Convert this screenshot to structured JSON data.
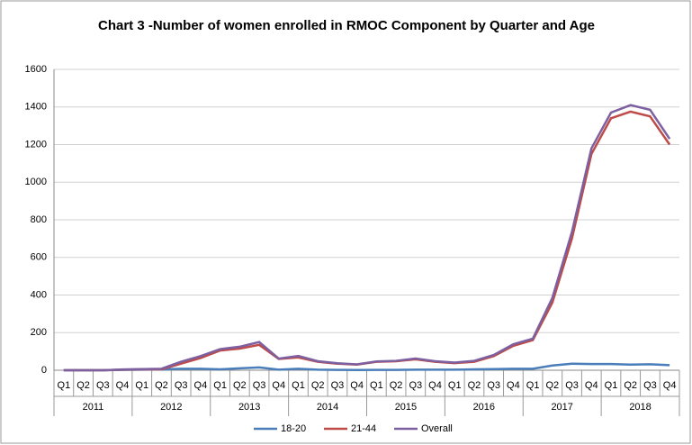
{
  "chart_data": {
    "type": "line",
    "title": "Chart 3 -Number of women enrolled in RMOC Component by Quarter and Age",
    "categories": [
      "Q1",
      "Q2",
      "Q3",
      "Q4",
      "Q1",
      "Q2",
      "Q3",
      "Q4",
      "Q1",
      "Q2",
      "Q3",
      "Q4",
      "Q1",
      "Q2",
      "Q3",
      "Q4",
      "Q1",
      "Q2",
      "Q3",
      "Q4",
      "Q1",
      "Q2",
      "Q3",
      "Q4",
      "Q1",
      "Q2",
      "Q3",
      "Q4",
      "Q1",
      "Q2",
      "Q3",
      "Q4"
    ],
    "category_groups": [
      "2011",
      "2012",
      "2013",
      "2014",
      "2015",
      "2016",
      "2017",
      "2018"
    ],
    "series": [
      {
        "name": "18-20",
        "color": "#4a7ebb",
        "values": [
          0,
          0,
          0,
          2,
          3,
          4,
          8,
          8,
          5,
          10,
          15,
          3,
          8,
          3,
          2,
          1,
          2,
          2,
          3,
          3,
          3,
          5,
          6,
          8,
          8,
          25,
          35,
          33,
          33,
          30,
          32,
          27
        ]
      },
      {
        "name": "21-44",
        "color": "#be4b48",
        "values": [
          0,
          0,
          0,
          3,
          5,
          5,
          35,
          65,
          105,
          115,
          135,
          60,
          68,
          45,
          35,
          30,
          45,
          48,
          58,
          45,
          38,
          45,
          75,
          130,
          160,
          360,
          700,
          1150,
          1340,
          1375,
          1350,
          1200
        ]
      },
      {
        "name": "Overall",
        "color": "#7d60a0",
        "values": [
          0,
          0,
          0,
          4,
          6,
          8,
          45,
          75,
          112,
          125,
          150,
          62,
          76,
          48,
          37,
          31,
          47,
          50,
          62,
          48,
          41,
          50,
          81,
          138,
          168,
          385,
          735,
          1180,
          1370,
          1410,
          1385,
          1230
        ]
      }
    ],
    "ylim": [
      0,
      1600
    ],
    "yticks": [
      0,
      200,
      400,
      600,
      800,
      1000,
      1200,
      1400,
      1600
    ],
    "grid": true,
    "legend": "bottom"
  }
}
